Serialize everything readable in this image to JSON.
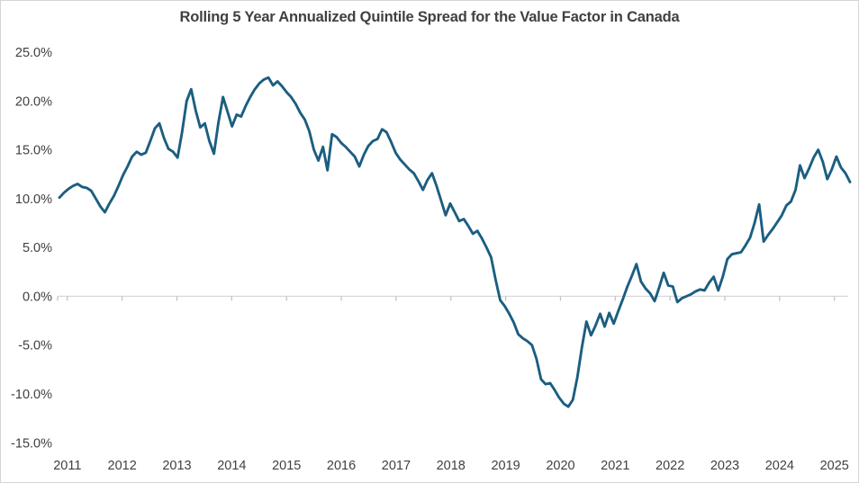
{
  "chart_data": {
    "type": "line",
    "title": "Rolling 5 Year Annualized Quintile Spread for the Value Factor in Canada",
    "series_name": "Rolling 5 year annualized quintile spread",
    "legend": "none",
    "grid": "horizontal zero line only",
    "ylim": [
      -15,
      25
    ],
    "y_tick_labels": [
      "25.0%",
      "20.0%",
      "15.0%",
      "10.0%",
      "5.0%",
      "0.0%",
      "-5.0%",
      "-10.0%",
      "-15.0%"
    ],
    "y_tick_values": [
      25,
      20,
      15,
      10,
      5,
      0,
      -5,
      -10,
      -15
    ],
    "x_tick_labels": [
      "2011",
      "2012",
      "2013",
      "2014",
      "2015",
      "2016",
      "2017",
      "2018",
      "2019",
      "2020",
      "2021",
      "2022",
      "2023",
      "2024",
      "2025"
    ],
    "line_color": "#1b5e80",
    "zero_line_color": "#d9d9d9",
    "tick_color": "#bfbfbf",
    "label_color": "#404040",
    "x": [
      "2010-11",
      "2010-12",
      "2011-01",
      "2011-02",
      "2011-03",
      "2011-04",
      "2011-05",
      "2011-06",
      "2011-07",
      "2011-08",
      "2011-09",
      "2011-10",
      "2011-11",
      "2011-12",
      "2012-01",
      "2012-02",
      "2012-03",
      "2012-04",
      "2012-05",
      "2012-06",
      "2012-07",
      "2012-08",
      "2012-09",
      "2012-10",
      "2012-11",
      "2012-12",
      "2013-01",
      "2013-02",
      "2013-03",
      "2013-04",
      "2013-05",
      "2013-06",
      "2013-07",
      "2013-08",
      "2013-09",
      "2013-10",
      "2013-11",
      "2013-12",
      "2014-01",
      "2014-02",
      "2014-03",
      "2014-04",
      "2014-05",
      "2014-06",
      "2014-07",
      "2014-08",
      "2014-09",
      "2014-10",
      "2014-11",
      "2014-12",
      "2015-01",
      "2015-02",
      "2015-03",
      "2015-04",
      "2015-05",
      "2015-06",
      "2015-07",
      "2015-08",
      "2015-09",
      "2015-10",
      "2015-11",
      "2015-12",
      "2016-01",
      "2016-02",
      "2016-03",
      "2016-04",
      "2016-05",
      "2016-06",
      "2016-07",
      "2016-08",
      "2016-09",
      "2016-10",
      "2016-11",
      "2016-12",
      "2017-01",
      "2017-02",
      "2017-03",
      "2017-04",
      "2017-05",
      "2017-06",
      "2017-07",
      "2017-08",
      "2017-09",
      "2017-10",
      "2017-11",
      "2017-12",
      "2018-01",
      "2018-02",
      "2018-03",
      "2018-04",
      "2018-05",
      "2018-06",
      "2018-07",
      "2018-08",
      "2018-09",
      "2018-10",
      "2018-11",
      "2018-12",
      "2019-01",
      "2019-02",
      "2019-03",
      "2019-04",
      "2019-05",
      "2019-06",
      "2019-07",
      "2019-08",
      "2019-09",
      "2019-10",
      "2019-11",
      "2019-12",
      "2020-01",
      "2020-02",
      "2020-03",
      "2020-04",
      "2020-05",
      "2020-06",
      "2020-07",
      "2020-08",
      "2020-09",
      "2020-10",
      "2020-11",
      "2020-12",
      "2021-01",
      "2021-02",
      "2021-03",
      "2021-04",
      "2021-05",
      "2021-06",
      "2021-07",
      "2021-08",
      "2021-09",
      "2021-10",
      "2021-11",
      "2021-12",
      "2022-01",
      "2022-02",
      "2022-03",
      "2022-04",
      "2022-05",
      "2022-06",
      "2022-07",
      "2022-08",
      "2022-09",
      "2022-10",
      "2022-11",
      "2022-12",
      "2023-01",
      "2023-02",
      "2023-03",
      "2023-04",
      "2023-05",
      "2023-06",
      "2023-07",
      "2023-08",
      "2023-09",
      "2023-10",
      "2023-11",
      "2023-12",
      "2024-01",
      "2024-02",
      "2024-03",
      "2024-04",
      "2024-05",
      "2024-06",
      "2024-07",
      "2024-08",
      "2024-09",
      "2024-10",
      "2024-11",
      "2024-12",
      "2025-01",
      "2025-02",
      "2025-03",
      "2025-04",
      "2025-05"
    ],
    "values": [
      10.1,
      10.6,
      11.0,
      11.3,
      11.5,
      11.2,
      11.1,
      10.8,
      10.0,
      9.2,
      8.6,
      9.5,
      10.3,
      11.3,
      12.4,
      13.3,
      14.3,
      14.8,
      14.5,
      14.7,
      15.9,
      17.2,
      17.7,
      16.2,
      15.1,
      14.8,
      14.2,
      16.8,
      20.0,
      21.2,
      19.0,
      17.3,
      17.7,
      15.9,
      14.6,
      17.8,
      20.4,
      18.9,
      17.4,
      18.6,
      18.4,
      19.5,
      20.4,
      21.2,
      21.8,
      22.2,
      22.4,
      21.6,
      22.0,
      21.5,
      20.9,
      20.4,
      19.7,
      18.8,
      18.1,
      16.9,
      15.0,
      13.9,
      15.3,
      12.9,
      16.6,
      16.3,
      15.7,
      15.3,
      14.8,
      14.3,
      13.3,
      14.5,
      15.4,
      15.9,
      16.1,
      17.1,
      16.8,
      15.8,
      14.7,
      14.0,
      13.5,
      13.0,
      12.6,
      11.8,
      10.9,
      11.9,
      12.6,
      11.3,
      9.8,
      8.3,
      9.5,
      8.6,
      7.7,
      7.9,
      7.2,
      6.4,
      6.7,
      5.9,
      5.0,
      4.0,
      1.7,
      -0.4,
      -1.0,
      -1.8,
      -2.7,
      -3.9,
      -4.3,
      -4.6,
      -5.0,
      -6.4,
      -8.5,
      -9.0,
      -8.9,
      -9.6,
      -10.4,
      -11.0,
      -11.3,
      -10.6,
      -8.3,
      -5.2,
      -2.6,
      -4.0,
      -3.0,
      -1.8,
      -3.1,
      -1.7,
      -2.8,
      -1.5,
      -0.3,
      1.0,
      2.1,
      3.3,
      1.5,
      0.8,
      0.3,
      -0.5,
      0.9,
      2.4,
      1.1,
      1.0,
      -0.6,
      -0.2,
      0.0,
      0.2,
      0.5,
      0.7,
      0.6,
      1.4,
      2.0,
      0.6,
      2.0,
      3.8,
      4.3,
      4.4,
      4.5,
      5.2,
      6.0,
      7.5,
      9.4,
      5.6,
      6.3,
      6.9,
      7.6,
      8.3,
      9.3,
      9.7,
      10.9,
      13.4,
      12.1,
      13.1,
      14.2,
      15.0,
      13.8,
      12.0,
      13.0,
      14.3,
      13.2,
      12.6,
      11.7
    ]
  }
}
